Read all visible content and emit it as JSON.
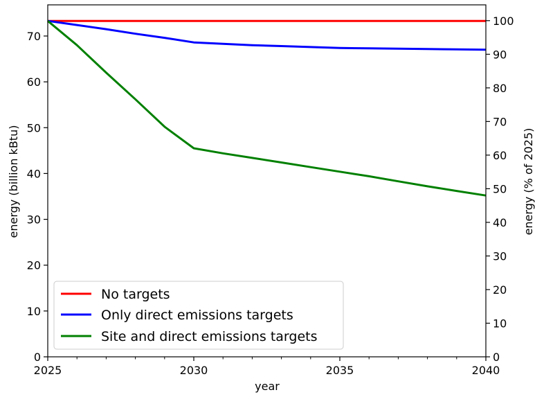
{
  "chart_data": {
    "type": "line",
    "title": "",
    "xlabel": "year",
    "ylabel": "energy (billion kBtu)",
    "y2label": "energy (% of 2025)",
    "xlim": [
      2025,
      2040
    ],
    "ylim": [
      0,
      76.8
    ],
    "y2lim": [
      0,
      104.7
    ],
    "xticks": [
      2025,
      2030,
      2035,
      2040
    ],
    "xticks_minor": [
      2026,
      2027,
      2028,
      2029,
      2031,
      2032,
      2033,
      2034,
      2036,
      2037,
      2038,
      2039
    ],
    "yticks": [
      0,
      10,
      20,
      30,
      40,
      50,
      60,
      70
    ],
    "y2ticks": [
      0,
      10,
      20,
      30,
      40,
      50,
      60,
      70,
      80,
      90,
      100
    ],
    "grid": false,
    "legend_position": "lower-left",
    "x": [
      2025,
      2026,
      2027,
      2028,
      2029,
      2030,
      2031,
      2032,
      2033,
      2034,
      2035,
      2036,
      2037,
      2038,
      2039,
      2040
    ],
    "series": [
      {
        "name": "No targets",
        "color": "#ff0000",
        "values": [
          73.3,
          73.3,
          73.3,
          73.3,
          73.3,
          73.3,
          73.3,
          73.3,
          73.3,
          73.3,
          73.3,
          73.3,
          73.3,
          73.3,
          73.3,
          73.3
        ]
      },
      {
        "name": "Only direct emissions targets",
        "color": "#0000ff",
        "values": [
          73.3,
          72.4,
          71.5,
          70.5,
          69.6,
          68.6,
          68.3,
          68.0,
          67.8,
          67.6,
          67.4,
          67.3,
          67.25,
          67.15,
          67.1,
          67.0
        ]
      },
      {
        "name": "Site and direct emissions targets",
        "color": "#008000",
        "values": [
          73.3,
          68.0,
          62.0,
          56.2,
          50.2,
          45.5,
          44.4,
          43.4,
          42.4,
          41.4,
          40.4,
          39.4,
          38.3,
          37.2,
          36.2,
          35.2
        ]
      }
    ]
  }
}
